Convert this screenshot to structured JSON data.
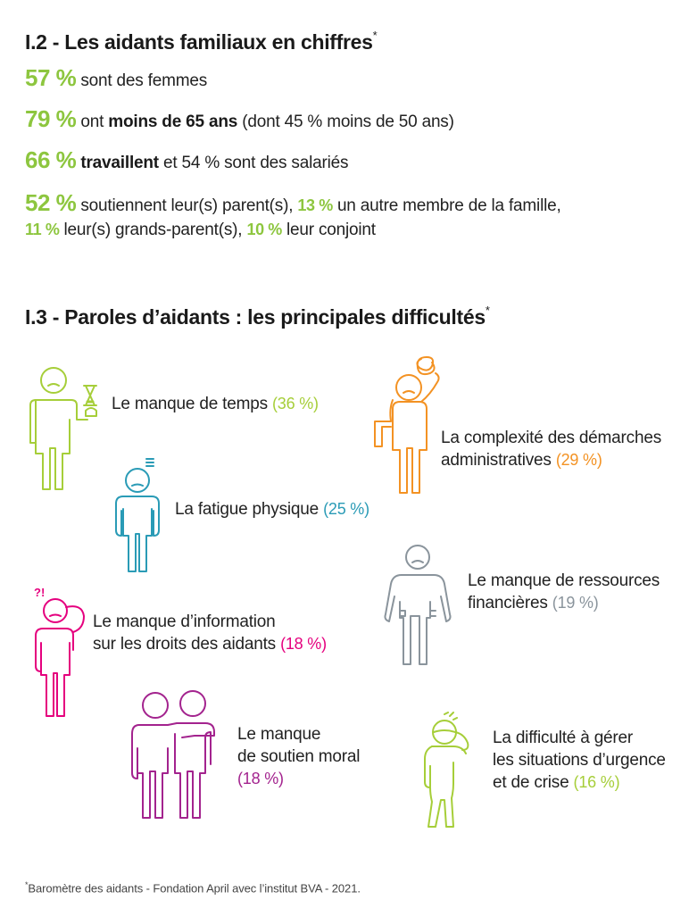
{
  "section_i2": {
    "title": "I.2 - Les aidants familiaux en chiffres",
    "title_mark": "*",
    "stats": [
      {
        "pct": "57 %",
        "text_a": "sont des femmes"
      },
      {
        "pct": "79 %",
        "text_a": "ont",
        "bold": "moins de 65 ans",
        "text_b": "(dont 45 % moins de 50 ans)"
      },
      {
        "pct": "66 %",
        "bold": "travaillent",
        "text_b": "et 54 % sont des salariés"
      },
      {
        "pct": "52 %",
        "text_a": "soutiennent leur(s) parent(s),",
        "pct2": "13 %",
        "text_c": "un autre membre de la famille,",
        "pct3": "11 %",
        "text_d": "leur(s) grands-parent(s),",
        "pct4": "10 %",
        "text_e": "leur conjoint"
      }
    ]
  },
  "section_i3": {
    "title": "I.3 - Paroles d’aidants : les principales difficultés",
    "title_mark": "*",
    "items": [
      {
        "icon": "hourglass-person-icon",
        "line1": "Le manque de temps",
        "pct": "(36 %)",
        "color": "#a6ce39"
      },
      {
        "icon": "confused-person-icon",
        "line1": "La complexité des démarches",
        "line2": "administratives",
        "pct": "(29 %)",
        "color": "#f39223"
      },
      {
        "icon": "tired-person-icon",
        "line1": "La fatigue physique",
        "pct": "(25 %)",
        "color": "#2a9bb6"
      },
      {
        "icon": "empty-pockets-person-icon",
        "line1": "Le manque de ressources",
        "line2": "financières",
        "pct": "(19 %)",
        "color": "#8a949c"
      },
      {
        "icon": "questioning-person-icon",
        "line1": "Le manque d’information",
        "line2": "sur les droits des aidants",
        "pct": "(18 %)",
        "color": "#e5007e"
      },
      {
        "icon": "two-people-hugging-icon",
        "line1": "Le manque",
        "line2": "de soutien moral",
        "pct": "(18 %)",
        "color": "#a3238e"
      },
      {
        "icon": "stressed-person-icon",
        "line1": "La difficulté à gérer",
        "line2": "les situations d’urgence",
        "line3": "et de crise",
        "pct": "(16 %)",
        "color": "#a6ce39"
      }
    ]
  },
  "footnote": {
    "mark": "*",
    "text": "Baromètre des aidants - Fondation April avec l’institut BVA - 2021."
  },
  "colors": {
    "accent_green": "#8dc63f",
    "lime": "#a6ce39",
    "orange": "#f39223",
    "teal": "#2a9bb6",
    "grey": "#8a949c",
    "pink": "#e5007e",
    "purple": "#a3238e"
  }
}
